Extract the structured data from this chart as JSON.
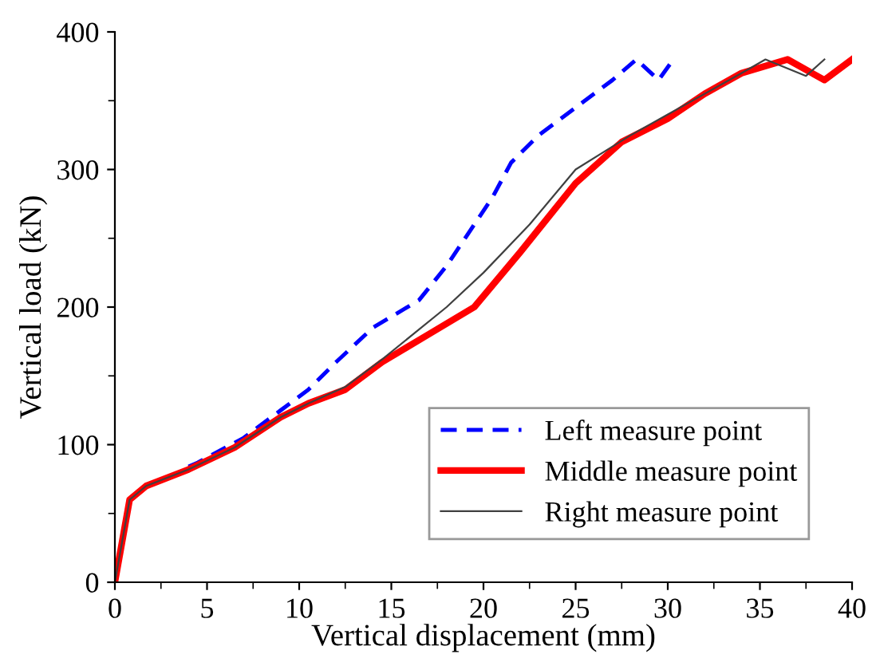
{
  "chart_data": {
    "type": "line",
    "xlabel": "Vertical displacement (mm)",
    "ylabel": "Vertical load (kN)",
    "xlim": [
      0,
      40
    ],
    "ylim": [
      0,
      400
    ],
    "xticks": [
      0,
      5,
      10,
      15,
      20,
      25,
      30,
      35,
      40
    ],
    "yticks": [
      0,
      100,
      200,
      300,
      400
    ],
    "grid": false,
    "legend": "bottom right",
    "series": [
      {
        "name": "Left measure point",
        "color": "#0000ff",
        "line_style": "dashed",
        "x": [
          4,
          4.5,
          7,
          9,
          10.5,
          12,
          14,
          16.5,
          18,
          20.5,
          21.5,
          23,
          25,
          27,
          28.3,
          29.5,
          30.3
        ],
        "values": [
          84,
          87,
          105,
          125,
          140,
          160,
          185,
          205,
          230,
          280,
          305,
          325,
          345,
          365,
          380,
          365,
          380
        ]
      },
      {
        "name": "Middle measure point",
        "color": "#ff0000",
        "line_style": "solid",
        "x": [
          0,
          0.8,
          1.7,
          4,
          6.5,
          9,
          10.5,
          12.5,
          14.5,
          17,
          19.5,
          22,
          25,
          27.5,
          30,
          32,
          34,
          36.5,
          38.5,
          40
        ],
        "values": [
          0,
          60,
          70,
          82,
          98,
          120,
          130,
          140,
          160,
          180,
          200,
          240,
          290,
          320,
          337,
          355,
          370,
          380,
          365,
          380
        ]
      },
      {
        "name": "Right measure point",
        "color": "#404040",
        "line_style": "solid",
        "x": [
          0,
          0.8,
          1.7,
          4,
          6.5,
          9,
          10.5,
          12.5,
          14.5,
          18,
          20,
          22.5,
          25,
          28,
          30,
          32,
          34,
          35.3,
          37.5,
          38.5
        ],
        "values": [
          0,
          60,
          70,
          82,
          98,
          120,
          130,
          142,
          162,
          200,
          225,
          260,
          300,
          325,
          340,
          355,
          370,
          380,
          368,
          380
        ]
      }
    ]
  }
}
